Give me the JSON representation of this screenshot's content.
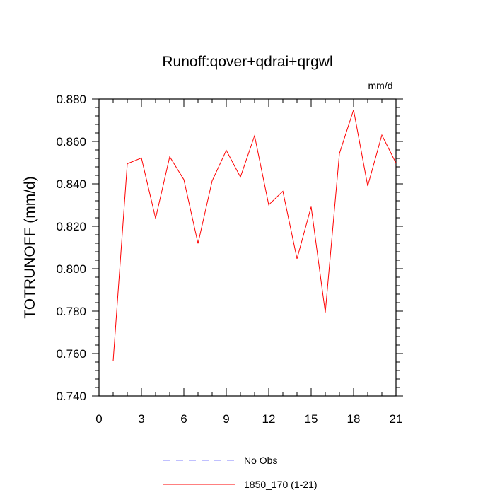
{
  "chart_data": {
    "type": "line",
    "title": "Runoff:qover+qdrai+qrgwl",
    "units_label": "mm/d",
    "ylabel": "TOTRUNOFF  (mm/d)",
    "xlabel": "",
    "xlim": [
      0,
      21
    ],
    "ylim": [
      0.74,
      0.88
    ],
    "x_ticks": [
      0,
      3,
      6,
      9,
      12,
      15,
      18,
      21
    ],
    "x_tick_labels": [
      "0",
      "3",
      "6",
      "9",
      "12",
      "15",
      "18",
      "21"
    ],
    "y_ticks": [
      0.74,
      0.76,
      0.78,
      0.8,
      0.82,
      0.84,
      0.86,
      0.88
    ],
    "y_tick_labels": [
      "0.740",
      "0.760",
      "0.780",
      "0.800",
      "0.820",
      "0.840",
      "0.860",
      "0.880"
    ],
    "grid": false,
    "legend_position": "bottom",
    "series": [
      {
        "name": "No Obs",
        "color": "#8080ff",
        "dash": "dashed",
        "x": [],
        "y": []
      },
      {
        "name": "1850_170 (1-21)",
        "color": "#ff0000",
        "dash": "solid",
        "x": [
          1,
          2,
          3,
          4,
          5,
          6,
          7,
          8,
          9,
          10,
          11,
          12,
          13,
          14,
          15,
          16,
          17,
          18,
          19,
          20,
          21
        ],
        "y": [
          0.7565,
          0.8495,
          0.8522,
          0.8237,
          0.8528,
          0.842,
          0.8119,
          0.8414,
          0.8558,
          0.8432,
          0.8627,
          0.8301,
          0.8365,
          0.8047,
          0.8292,
          0.7794,
          0.8543,
          0.8749,
          0.839,
          0.863,
          0.8498
        ]
      }
    ]
  }
}
